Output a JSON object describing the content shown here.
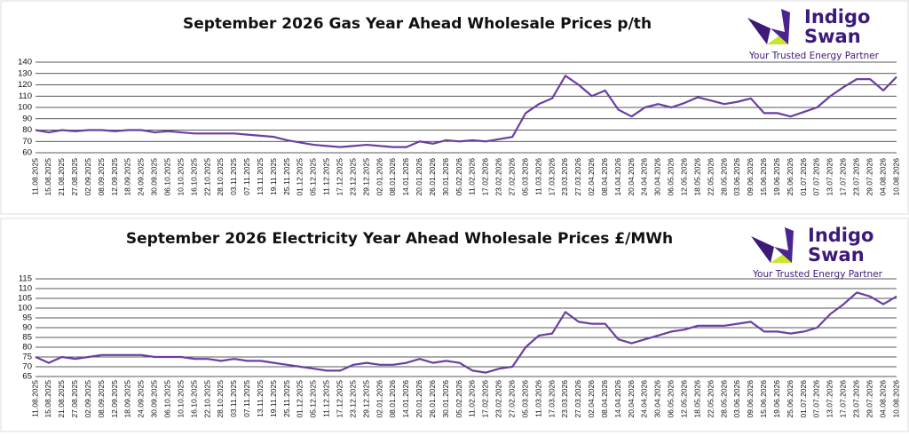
{
  "logo": {
    "line1": "Indigo",
    "line2": "Swan",
    "tagline": "Your Trusted Energy Partner"
  },
  "chart_data": [
    {
      "type": "line",
      "title": "September 2026 Gas Year Ahead Wholesale Prices p/th",
      "color": "#6a3fa0",
      "grid": true,
      "categories": [
        "11.08.2025",
        "15.08.2025",
        "21.08.2025",
        "27.08.2025",
        "02.09.2025",
        "08.09.2025",
        "12.09.2025",
        "18.09.2025",
        "24.09.2025",
        "30.09.2025",
        "06.10.2025",
        "10.10.2025",
        "16.10.2025",
        "22.10.2025",
        "28.10.2025",
        "03.11.2025",
        "07.11.2025",
        "13.11.2025",
        "19.11.2025",
        "25.11.2025",
        "01.12.2025",
        "05.12.2025",
        "11.12.2025",
        "17.12.2025",
        "23.12.2025",
        "29.12.2025",
        "02.01.2026",
        "08.01.2026",
        "14.01.2026",
        "20.01.2026",
        "26.01.2026",
        "30.01.2026",
        "05.02.2026",
        "11.02.2026",
        "17.02.2026",
        "23.02.2026",
        "27.02.2026",
        "05.03.2026",
        "11.03.2026",
        "17.03.2026",
        "23.03.2026",
        "27.03.2026",
        "02.04.2026",
        "08.04.2026",
        "14.04.2026",
        "20.04.2026",
        "24.04.2026",
        "30.04.2026",
        "06.05.2026",
        "12.05.2026",
        "18.05.2026",
        "22.05.2026",
        "28.05.2026",
        "03.06.2026",
        "09.06.2026",
        "15.06.2026",
        "19.06.2026",
        "25.06.2026",
        "01.07.2026",
        "07.07.2026",
        "13.07.2026",
        "17.07.2026",
        "23.07.2026",
        "29.07.2026",
        "04.08.2026",
        "10.08.2026"
      ],
      "values": [
        80,
        78,
        80,
        79,
        80,
        80,
        79,
        80,
        80,
        78,
        79,
        78,
        77,
        77,
        77,
        77,
        76,
        75,
        74,
        71,
        69,
        67,
        66,
        65,
        66,
        67,
        66,
        65,
        65,
        70,
        68,
        71,
        70,
        71,
        70,
        72,
        74,
        95,
        103,
        108,
        128,
        120,
        110,
        115,
        98,
        92,
        100,
        103,
        100,
        104,
        109,
        106,
        103,
        105,
        108,
        95,
        95,
        92,
        96,
        100,
        110,
        118,
        125,
        125,
        115,
        127
      ],
      "ylim": [
        60,
        140
      ],
      "yticks": [
        60,
        70,
        80,
        90,
        100,
        110,
        120,
        130,
        140
      ]
    },
    {
      "type": "line",
      "title": "September 2026 Electricity Year Ahead Wholesale Prices £/MWh",
      "color": "#6a3fa0",
      "grid": true,
      "categories": [
        "11.08.2025",
        "15.08.2025",
        "21.08.2025",
        "27.08.2025",
        "02.09.2025",
        "08.09.2025",
        "12.09.2025",
        "18.09.2025",
        "24.09.2025",
        "30.09.2025",
        "06.10.2025",
        "10.10.2025",
        "16.10.2025",
        "22.10.2025",
        "28.10.2025",
        "03.11.2025",
        "07.11.2025",
        "13.11.2025",
        "19.11.2025",
        "25.11.2025",
        "01.12.2025",
        "05.12.2025",
        "11.12.2025",
        "17.12.2025",
        "23.12.2025",
        "29.12.2025",
        "02.01.2026",
        "08.01.2026",
        "14.01.2026",
        "20.01.2026",
        "26.01.2026",
        "30.01.2026",
        "05.02.2026",
        "11.02.2026",
        "17.02.2026",
        "23.02.2026",
        "27.02.2026",
        "05.03.2026",
        "11.03.2026",
        "17.03.2026",
        "23.03.2026",
        "27.03.2026",
        "02.04.2026",
        "08.04.2026",
        "14.04.2026",
        "20.04.2026",
        "24.04.2026",
        "30.04.2026",
        "06.05.2026",
        "12.05.2026",
        "18.05.2026",
        "22.05.2026",
        "28.05.2026",
        "03.06.2026",
        "09.06.2026",
        "15.06.2026",
        "19.06.2026",
        "25.06.2026",
        "01.07.2026",
        "07.07.2026",
        "13.07.2026",
        "17.07.2026",
        "23.07.2026",
        "29.07.2026",
        "04.08.2026",
        "10.08.2026"
      ],
      "values": [
        75,
        72,
        75,
        74,
        75,
        76,
        76,
        76,
        76,
        75,
        75,
        75,
        74,
        74,
        73,
        74,
        73,
        73,
        72,
        71,
        70,
        69,
        68,
        68,
        71,
        72,
        71,
        71,
        72,
        74,
        72,
        73,
        72,
        68,
        67,
        69,
        70,
        80,
        86,
        87,
        98,
        93,
        92,
        92,
        84,
        82,
        84,
        86,
        88,
        89,
        91,
        91,
        91,
        92,
        93,
        88,
        88,
        87,
        88,
        90,
        97,
        102,
        108,
        106,
        102,
        106
      ],
      "ylim": [
        65,
        115
      ],
      "yticks": [
        65,
        70,
        75,
        80,
        85,
        90,
        95,
        100,
        105,
        110,
        115
      ]
    }
  ]
}
